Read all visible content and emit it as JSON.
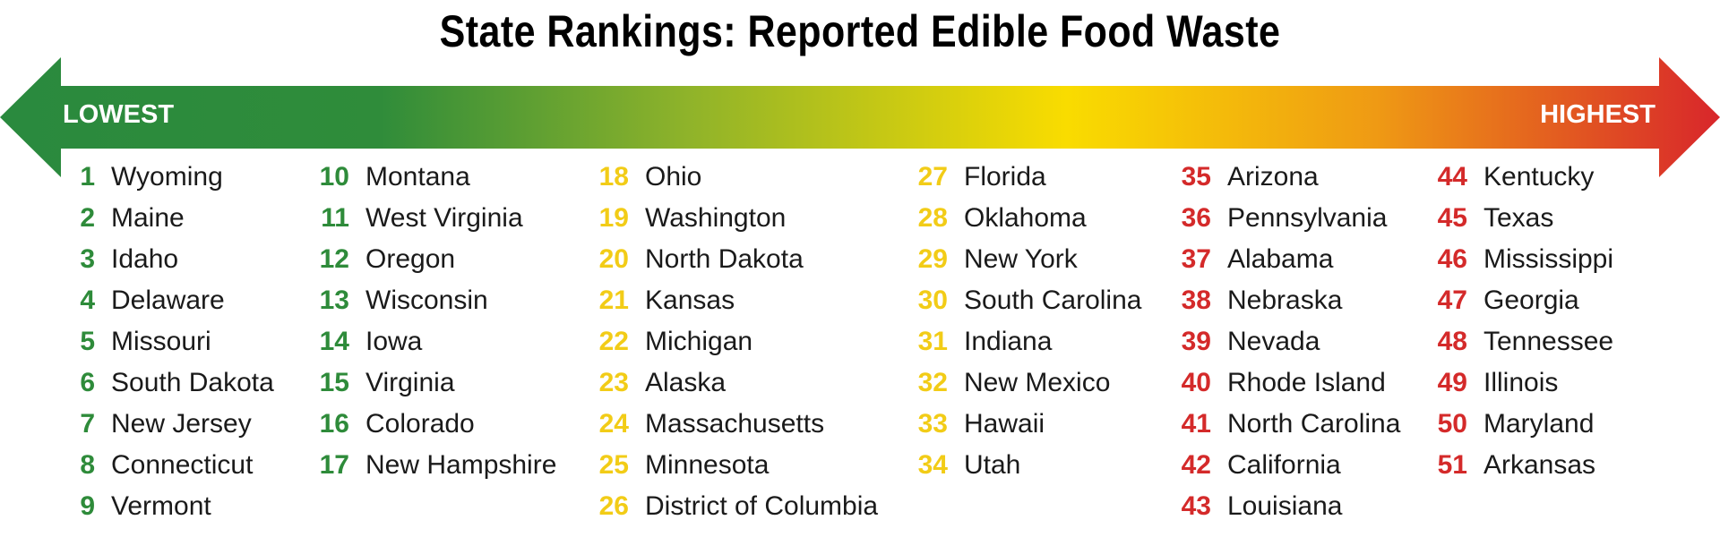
{
  "title": "State Rankings: Reported Edible Food Waste",
  "scale": {
    "low_label": "LOWEST",
    "high_label": "HIGHEST",
    "colors": {
      "green": "#2e8b3a",
      "yellow": "#f7d800",
      "red": "#d42a2a"
    }
  },
  "columns": [
    {
      "color": "green",
      "items": [
        {
          "rank": "1",
          "state": "Wyoming"
        },
        {
          "rank": "2",
          "state": "Maine"
        },
        {
          "rank": "3",
          "state": "Idaho"
        },
        {
          "rank": "4",
          "state": "Delaware"
        },
        {
          "rank": "5",
          "state": "Missouri"
        },
        {
          "rank": "6",
          "state": "South Dakota"
        },
        {
          "rank": "7",
          "state": "New Jersey"
        },
        {
          "rank": "8",
          "state": "Connecticut"
        },
        {
          "rank": "9",
          "state": "Vermont"
        }
      ]
    },
    {
      "color": "green",
      "items": [
        {
          "rank": "10",
          "state": "Montana"
        },
        {
          "rank": "11",
          "state": "West Virginia"
        },
        {
          "rank": "12",
          "state": "Oregon"
        },
        {
          "rank": "13",
          "state": "Wisconsin"
        },
        {
          "rank": "14",
          "state": "Iowa"
        },
        {
          "rank": "15",
          "state": "Virginia"
        },
        {
          "rank": "16",
          "state": "Colorado"
        },
        {
          "rank": "17",
          "state": "New Hampshire"
        }
      ]
    },
    {
      "color": "yellow",
      "items": [
        {
          "rank": "18",
          "state": "Ohio"
        },
        {
          "rank": "19",
          "state": "Washington"
        },
        {
          "rank": "20",
          "state": "North Dakota"
        },
        {
          "rank": "21",
          "state": "Kansas"
        },
        {
          "rank": "22",
          "state": "Michigan"
        },
        {
          "rank": "23",
          "state": "Alaska"
        },
        {
          "rank": "24",
          "state": "Massachusetts"
        },
        {
          "rank": "25",
          "state": "Minnesota"
        },
        {
          "rank": "26",
          "state": "District of Columbia"
        }
      ]
    },
    {
      "color": "yellow",
      "items": [
        {
          "rank": "27",
          "state": "Florida"
        },
        {
          "rank": "28",
          "state": "Oklahoma"
        },
        {
          "rank": "29",
          "state": "New York"
        },
        {
          "rank": "30",
          "state": "South Carolina"
        },
        {
          "rank": "31",
          "state": "Indiana"
        },
        {
          "rank": "32",
          "state": "New Mexico"
        },
        {
          "rank": "33",
          "state": "Hawaii"
        },
        {
          "rank": "34",
          "state": "Utah"
        }
      ]
    },
    {
      "color": "red",
      "items": [
        {
          "rank": "35",
          "state": "Arizona"
        },
        {
          "rank": "36",
          "state": "Pennsylvania"
        },
        {
          "rank": "37",
          "state": "Alabama"
        },
        {
          "rank": "38",
          "state": "Nebraska"
        },
        {
          "rank": "39",
          "state": "Nevada"
        },
        {
          "rank": "40",
          "state": "Rhode Island"
        },
        {
          "rank": "41",
          "state": "North Carolina"
        },
        {
          "rank": "42",
          "state": "California"
        },
        {
          "rank": "43",
          "state": "Louisiana"
        }
      ]
    },
    {
      "color": "red",
      "items": [
        {
          "rank": "44",
          "state": "Kentucky"
        },
        {
          "rank": "45",
          "state": "Texas"
        },
        {
          "rank": "46",
          "state": "Mississippi"
        },
        {
          "rank": "47",
          "state": "Georgia"
        },
        {
          "rank": "48",
          "state": "Tennessee"
        },
        {
          "rank": "49",
          "state": "Illinois"
        },
        {
          "rank": "50",
          "state": "Maryland"
        },
        {
          "rank": "51",
          "state": "Arkansas"
        }
      ]
    }
  ]
}
